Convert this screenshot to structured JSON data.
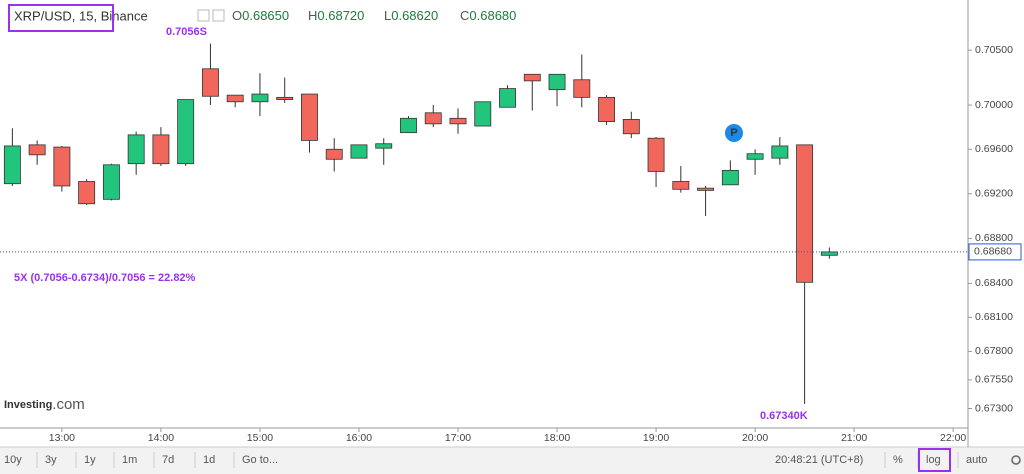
{
  "chart_data": {
    "type": "candlestick",
    "title": "XRP/USD, 15, Binance",
    "ohlc": [
      {
        "label": "O",
        "value": "0.68650"
      },
      {
        "label": "H",
        "value": "0.68720"
      },
      {
        "label": "L",
        "value": "0.68620"
      },
      {
        "label": "C",
        "value": "0.68680"
      }
    ],
    "x": [
      12.5,
      12.75,
      13,
      13.25,
      13.5,
      13.75,
      14,
      14.25,
      14.5,
      14.75,
      15,
      15.25,
      15.5,
      15.75,
      16,
      16.25,
      16.5,
      16.75,
      17,
      17.25,
      17.5,
      17.75,
      18,
      18.25,
      18.5,
      18.75,
      19,
      19.25,
      19.5,
      19.75,
      20,
      20.25,
      20.5,
      20.75
    ],
    "open": [
      0.6929,
      0.6964,
      0.6962,
      0.6931,
      0.6915,
      0.6947,
      0.6973,
      0.6947,
      0.7033,
      0.7009,
      0.7003,
      0.7007,
      0.701,
      0.696,
      0.6952,
      0.6961,
      0.6975,
      0.6993,
      0.6988,
      0.6981,
      0.6998,
      0.7028,
      0.7014,
      0.7023,
      0.7007,
      0.6987,
      0.697,
      0.6931,
      0.6925,
      0.6928,
      0.6951,
      0.6952,
      0.6964,
      0.6865
    ],
    "high": [
      0.6979,
      0.6968,
      0.6963,
      0.6933,
      0.6947,
      0.6976,
      0.698,
      0.7005,
      0.7056,
      0.7009,
      0.7029,
      0.7025,
      0.701,
      0.697,
      0.6964,
      0.697,
      0.699,
      0.7,
      0.6997,
      0.7003,
      0.7018,
      0.7028,
      0.7028,
      0.7046,
      0.7009,
      0.6994,
      0.6971,
      0.6945,
      0.6927,
      0.695,
      0.696,
      0.6971,
      0.6964,
      0.6872
    ],
    "low": [
      0.6927,
      0.6946,
      0.6922,
      0.691,
      0.6914,
      0.6937,
      0.6945,
      0.6945,
      0.7,
      0.6998,
      0.699,
      0.7002,
      0.6957,
      0.694,
      0.6952,
      0.6946,
      0.6975,
      0.698,
      0.6974,
      0.6981,
      0.6998,
      0.6995,
      0.6999,
      0.6998,
      0.6982,
      0.697,
      0.6926,
      0.6921,
      0.69,
      0.6928,
      0.6937,
      0.6946,
      0.6734,
      0.6862
    ],
    "close": [
      0.6963,
      0.6955,
      0.6927,
      0.6911,
      0.6946,
      0.6973,
      0.6947,
      0.7005,
      0.7008,
      0.7003,
      0.701,
      0.7005,
      0.6968,
      0.6951,
      0.6964,
      0.6965,
      0.6988,
      0.6983,
      0.6983,
      0.7003,
      0.7015,
      0.7022,
      0.7028,
      0.7007,
      0.6985,
      0.6974,
      0.694,
      0.6924,
      0.6923,
      0.6941,
      0.6956,
      0.6963,
      0.6841,
      0.6868
    ],
    "up_color": "#23c47b",
    "down_color": "#f2675c",
    "log_scale": true,
    "xlim": [
      12.375,
      22.15
    ],
    "xticks": [
      {
        "value": 13,
        "label": "13:00"
      },
      {
        "value": 14,
        "label": "14:00"
      },
      {
        "value": 15,
        "label": "15:00"
      },
      {
        "value": 16,
        "label": "16:00"
      },
      {
        "value": 17,
        "label": "17:00"
      },
      {
        "value": 18,
        "label": "18:00"
      },
      {
        "value": 19,
        "label": "19:00"
      },
      {
        "value": 20,
        "label": "20:00"
      },
      {
        "value": 21,
        "label": "21:00"
      },
      {
        "value": 22,
        "label": "22:00"
      }
    ],
    "ylim": [
      0.6713,
      0.7096
    ],
    "yticks": [
      {
        "value": 0.705,
        "label": "0.70500"
      },
      {
        "value": 0.7,
        "label": "0.70000"
      },
      {
        "value": 0.696,
        "label": "0.69600"
      },
      {
        "value": 0.692,
        "label": "0.69200"
      },
      {
        "value": 0.688,
        "label": "0.68800"
      },
      {
        "value": 0.684,
        "label": "0.68400"
      },
      {
        "value": 0.681,
        "label": "0.68100"
      },
      {
        "value": 0.678,
        "label": "0.67800"
      },
      {
        "value": 0.6755,
        "label": "0.67550"
      },
      {
        "value": 0.673,
        "label": "0.67300"
      }
    ],
    "last_price": {
      "value": 0.6868,
      "label": "0.68680"
    },
    "marker": "P",
    "annotations": [
      "0.7056S",
      "5X (0.7056-0.6734)/0.7056 = 22.82%",
      "0.67340K"
    ],
    "watermark": [
      "Investing",
      ".com"
    ],
    "toolbar": {
      "ranges": [
        "10y",
        "3y",
        "1y",
        "1m",
        "7d",
        "1d",
        "Go to..."
      ],
      "clock": "20:48:21 (UTC+8)",
      "options": [
        "%",
        "log",
        "auto"
      ]
    }
  }
}
